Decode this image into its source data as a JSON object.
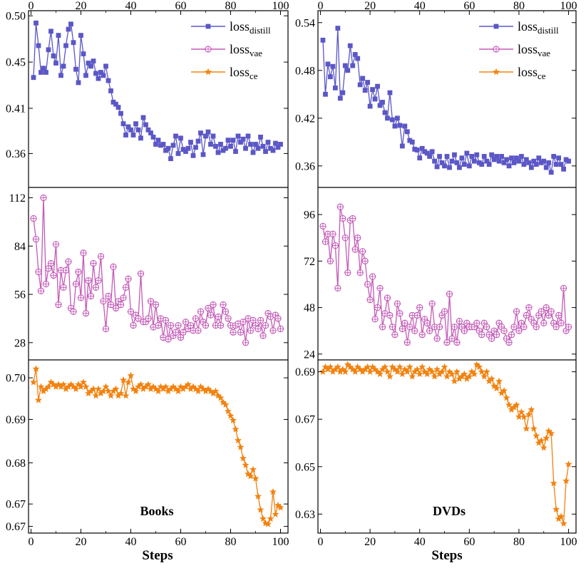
{
  "colors": {
    "distill": "#5b57c7",
    "vae": "#c45ab8",
    "ce": "#f2820f"
  },
  "legend": [
    {
      "base": "loss",
      "sub": "distill",
      "color": "#5b57c7",
      "marker": "square"
    },
    {
      "base": "loss",
      "sub": "vae",
      "color": "#c45ab8",
      "marker": "circle-plus"
    },
    {
      "base": "loss",
      "sub": "ce",
      "color": "#f2820f",
      "marker": "star"
    }
  ],
  "chart_data": [
    {
      "type": "line",
      "name": "Books",
      "xlabel": "Steps",
      "xlim": [
        -1,
        103
      ],
      "xticks": [
        "0",
        "20",
        "40",
        "60",
        "80",
        "100"
      ],
      "panels": [
        {
          "series": "distill",
          "ylim": [
            0.33,
            0.502
          ],
          "yticks": [
            "0.50",
            "0.45",
            "0.41",
            "0.36"
          ],
          "ytick_values": [
            0.497,
            0.452,
            0.407,
            0.363
          ],
          "values": [
            0.437,
            0.49,
            0.468,
            0.442,
            0.446,
            0.442,
            0.464,
            0.482,
            0.458,
            0.451,
            0.478,
            0.439,
            0.448,
            0.468,
            0.484,
            0.489,
            0.471,
            0.445,
            0.432,
            0.478,
            0.46,
            0.439,
            0.451,
            0.448,
            0.453,
            0.441,
            0.436,
            0.442,
            0.439,
            0.448,
            0.434,
            0.424,
            0.413,
            0.411,
            0.408,
            0.402,
            0.392,
            0.381,
            0.389,
            0.386,
            0.381,
            0.392,
            0.386,
            0.378,
            0.398,
            0.391,
            0.386,
            0.383,
            0.379,
            0.372,
            0.376,
            0.371,
            0.372,
            0.366,
            0.368,
            0.358,
            0.371,
            0.38,
            0.363,
            0.378,
            0.367,
            0.365,
            0.368,
            0.374,
            0.361,
            0.369,
            0.375,
            0.383,
            0.362,
            0.38,
            0.384,
            0.372,
            0.38,
            0.37,
            0.364,
            0.372,
            0.366,
            0.368,
            0.376,
            0.37,
            0.376,
            0.365,
            0.38,
            0.374,
            0.377,
            0.368,
            0.38,
            0.372,
            0.364,
            0.372,
            0.368,
            0.379,
            0.37,
            0.365,
            0.374,
            0.368,
            0.366,
            0.373,
            0.369,
            0.372
          ]
        },
        {
          "series": "vae",
          "ylim": [
            18,
            118
          ],
          "yticks": [
            "112",
            "84",
            "56",
            "28"
          ],
          "ytick_values": [
            112,
            84,
            56,
            28
          ],
          "values": [
            100,
            88,
            69,
            58,
            112,
            62,
            71,
            74,
            67,
            85,
            50,
            70,
            60,
            70,
            75,
            48,
            46,
            62,
            69,
            54,
            80,
            45,
            64,
            55,
            74,
            60,
            64,
            78,
            52,
            36,
            55,
            50,
            72,
            48,
            52,
            50,
            54,
            60,
            65,
            46,
            38,
            44,
            42,
            68,
            40,
            40,
            42,
            52,
            37,
            50,
            38,
            42,
            31,
            41,
            30,
            38,
            32,
            34,
            38,
            31,
            34,
            40,
            36,
            38,
            35,
            42,
            35,
            46,
            40,
            38,
            48,
            44,
            50,
            38,
            43,
            38,
            50,
            46,
            42,
            38,
            34,
            38,
            39,
            34,
            40,
            28,
            42,
            35,
            41,
            38,
            36,
            41,
            32,
            38,
            45,
            43,
            35,
            44,
            42,
            36
          ]
        },
        {
          "series": "ce",
          "ylim": [
            0.6668,
            0.7055
          ],
          "yticks": [
            "0.70",
            "0.69",
            "0.68",
            "0.67",
            "0.67"
          ],
          "ytick_values": [
            0.7015,
            0.6922,
            0.6825,
            0.6733,
            0.6683
          ],
          "values": [
            0.7005,
            0.7035,
            0.6965,
            0.6995,
            0.6985,
            0.699,
            0.6995,
            0.7005,
            0.7,
            0.6995,
            0.7,
            0.6995,
            0.7,
            0.699,
            0.6995,
            0.7,
            0.6995,
            0.699,
            0.7,
            0.6995,
            0.7005,
            0.6995,
            0.698,
            0.6985,
            0.699,
            0.6975,
            0.699,
            0.698,
            0.6985,
            0.6995,
            0.6985,
            0.6975,
            0.6985,
            0.699,
            0.6975,
            0.698,
            0.701,
            0.6975,
            0.7005,
            0.702,
            0.699,
            0.6985,
            0.6995,
            0.7,
            0.699,
            0.6995,
            0.7,
            0.699,
            0.6995,
            0.699,
            0.6985,
            0.6995,
            0.699,
            0.6995,
            0.6985,
            0.699,
            0.6995,
            0.699,
            0.6985,
            0.6995,
            0.699,
            0.6995,
            0.7,
            0.699,
            0.6995,
            0.699,
            0.6985,
            0.6995,
            0.699,
            0.6985,
            0.699,
            0.6985,
            0.698,
            0.6985,
            0.6975,
            0.697,
            0.696,
            0.6955,
            0.694,
            0.693,
            0.692,
            0.69,
            0.6875,
            0.686,
            0.6835,
            0.682,
            0.68,
            0.6795,
            0.681,
            0.679,
            0.675,
            0.672,
            0.67,
            0.669,
            0.6688,
            0.67,
            0.676,
            0.671,
            0.673,
            0.6725
          ]
        }
      ]
    },
    {
      "type": "line",
      "name": "DVDs",
      "xlabel": "Steps",
      "xlim": [
        -1,
        103
      ],
      "xticks": [
        "0",
        "20",
        "40",
        "60",
        "80",
        "100"
      ],
      "panels": [
        {
          "series": "distill",
          "ylim": [
            0.333,
            0.555
          ],
          "yticks": [
            "0.54",
            "0.48",
            "0.42",
            "0.36"
          ],
          "ytick_values": [
            0.54,
            0.48,
            0.42,
            0.36
          ],
          "values": [
            0.518,
            0.45,
            0.488,
            0.472,
            0.485,
            0.458,
            0.533,
            0.445,
            0.452,
            0.486,
            0.48,
            0.511,
            0.486,
            0.5,
            0.495,
            0.462,
            0.47,
            0.455,
            0.465,
            0.435,
            0.456,
            0.444,
            0.46,
            0.436,
            0.44,
            0.427,
            0.42,
            0.452,
            0.418,
            0.41,
            0.42,
            0.411,
            0.385,
            0.41,
            0.403,
            0.392,
            0.39,
            0.381,
            0.38,
            0.37,
            0.382,
            0.378,
            0.376,
            0.372,
            0.378,
            0.366,
            0.359,
            0.372,
            0.364,
            0.36,
            0.372,
            0.358,
            0.366,
            0.374,
            0.364,
            0.358,
            0.37,
            0.362,
            0.376,
            0.36,
            0.372,
            0.366,
            0.374,
            0.364,
            0.362,
            0.372,
            0.366,
            0.362,
            0.374,
            0.368,
            0.372,
            0.366,
            0.372,
            0.364,
            0.368,
            0.36,
            0.37,
            0.364,
            0.37,
            0.366,
            0.372,
            0.362,
            0.368,
            0.364,
            0.358,
            0.366,
            0.362,
            0.37,
            0.364,
            0.366,
            0.358,
            0.364,
            0.352,
            0.372,
            0.362,
            0.37,
            0.362,
            0.356,
            0.368,
            0.366
          ]
        },
        {
          "series": "vae",
          "ylim": [
            21,
            110
          ],
          "yticks": [
            "96",
            "72",
            "48",
            "24"
          ],
          "ytick_values": [
            96,
            72,
            48,
            24
          ],
          "values": [
            90,
            82,
            86,
            72,
            86,
            80,
            58,
            100,
            94,
            84,
            66,
            93,
            94,
            78,
            84,
            66,
            77,
            72,
            60,
            52,
            64,
            42,
            48,
            58,
            38,
            45,
            53,
            44,
            38,
            34,
            50,
            45,
            37,
            40,
            30,
            38,
            44,
            36,
            44,
            48,
            34,
            42,
            40,
            36,
            50,
            38,
            32,
            38,
            44,
            46,
            30,
            55,
            32,
            38,
            30,
            41,
            38,
            36,
            40,
            38,
            38,
            38,
            40,
            36,
            34,
            40,
            38,
            34,
            32,
            36,
            34,
            40,
            38,
            36,
            32,
            30,
            34,
            38,
            46,
            36,
            40,
            38,
            44,
            48,
            42,
            40,
            38,
            44,
            46,
            40,
            48,
            44,
            46,
            40,
            38,
            44,
            40,
            58,
            36,
            38
          ]
        },
        {
          "series": "ce",
          "ylim": [
            0.622,
            0.695
          ],
          "yticks": [
            "0.69",
            "0.67",
            "0.65",
            "0.63"
          ],
          "ytick_values": [
            0.69,
            0.67,
            0.65,
            0.63
          ],
          "values": [
            0.69,
            0.692,
            0.691,
            0.692,
            0.69,
            0.691,
            0.692,
            0.69,
            0.691,
            0.69,
            0.693,
            0.692,
            0.691,
            0.69,
            0.692,
            0.691,
            0.69,
            0.691,
            0.692,
            0.69,
            0.692,
            0.691,
            0.69,
            0.689,
            0.691,
            0.692,
            0.69,
            0.688,
            0.692,
            0.691,
            0.69,
            0.692,
            0.689,
            0.691,
            0.69,
            0.692,
            0.688,
            0.69,
            0.691,
            0.689,
            0.692,
            0.69,
            0.689,
            0.691,
            0.69,
            0.688,
            0.691,
            0.689,
            0.69,
            0.692,
            0.688,
            0.69,
            0.689,
            0.686,
            0.69,
            0.687,
            0.688,
            0.689,
            0.687,
            0.688,
            0.69,
            0.689,
            0.693,
            0.692,
            0.69,
            0.688,
            0.69,
            0.686,
            0.687,
            0.684,
            0.683,
            0.686,
            0.681,
            0.682,
            0.679,
            0.676,
            0.674,
            0.675,
            0.676,
            0.671,
            0.673,
            0.671,
            0.666,
            0.672,
            0.674,
            0.666,
            0.663,
            0.66,
            0.661,
            0.658,
            0.662,
            0.665,
            0.664,
            0.643,
            0.632,
            0.628,
            0.629,
            0.626,
            0.644,
            0.651
          ]
        }
      ]
    }
  ]
}
